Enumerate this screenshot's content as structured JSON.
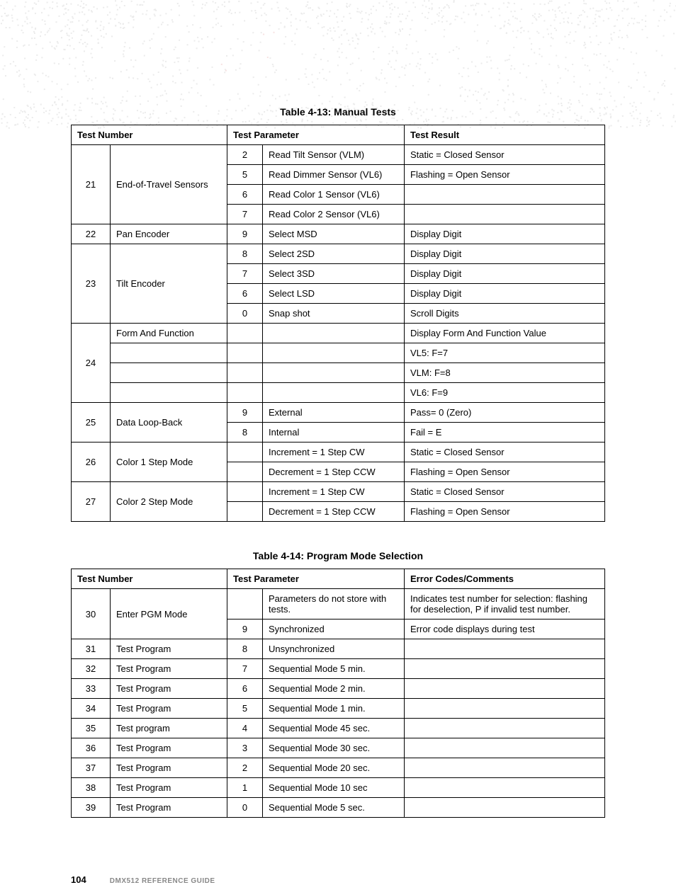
{
  "background": {
    "dot_color": "#bfbfbf",
    "red_highlight": "#e8a0a0"
  },
  "table413": {
    "caption": "Table 4-13: Manual Tests",
    "headers": {
      "col1": "Test Number",
      "col2": "Test Parameter",
      "col3": "Test Result"
    },
    "groups": [
      {
        "num": "21",
        "name": "End-of-Travel Sensors",
        "rows": [
          {
            "p": "2",
            "pt": "Read Tilt Sensor (VLM)",
            "r": "Static = Closed Sensor"
          },
          {
            "p": "5",
            "pt": "Read Dimmer Sensor (VL6)",
            "r": "Flashing = Open Sensor"
          },
          {
            "p": "6",
            "pt": "Read Color 1 Sensor (VL6)",
            "r": ""
          },
          {
            "p": "7",
            "pt": "Read Color 2 Sensor (VL6)",
            "r": ""
          }
        ]
      },
      {
        "num": "22",
        "name": "Pan Encoder",
        "rows": [
          {
            "p": "9",
            "pt": "Select MSD",
            "r": "Display Digit"
          }
        ]
      },
      {
        "num": "23",
        "name": "Tilt Encoder",
        "rows": [
          {
            "p": "8",
            "pt": "Select 2SD",
            "r": "Display Digit"
          },
          {
            "p": "7",
            "pt": "Select 3SD",
            "r": "Display Digit"
          },
          {
            "p": "6",
            "pt": "Select LSD",
            "r": "Display Digit"
          },
          {
            "p": "0",
            "pt": "Snap shot",
            "r": "Scroll Digits"
          }
        ]
      },
      {
        "num": "24",
        "name": "Form And Function",
        "name_first_row_only": true,
        "rows": [
          {
            "p": "",
            "pt": "",
            "r": "Display Form And Function Value"
          },
          {
            "p": "",
            "pt": "",
            "r": "VL5: F=7"
          },
          {
            "p": "",
            "pt": "",
            "r": "VLM: F=8"
          },
          {
            "p": "",
            "pt": "",
            "r": "VL6: F=9"
          }
        ]
      },
      {
        "num": "25",
        "name": "Data Loop-Back",
        "rows": [
          {
            "p": "9",
            "pt": "External",
            "r": "Pass= 0 (Zero)"
          },
          {
            "p": "8",
            "pt": "Internal",
            "r": "Fail = E"
          }
        ]
      },
      {
        "num": "26",
        "name": "Color 1 Step Mode",
        "rows": [
          {
            "p": "",
            "pt": "Increment = 1 Step CW",
            "r": "Static = Closed Sensor"
          },
          {
            "p": "",
            "pt": "Decrement = 1 Step CCW",
            "r": "Flashing = Open Sensor"
          }
        ]
      },
      {
        "num": "27",
        "name": "Color 2 Step Mode",
        "rows": [
          {
            "p": "",
            "pt": "Increment = 1 Step CW",
            "r": "Static = Closed Sensor"
          },
          {
            "p": "",
            "pt": "Decrement = 1 Step CCW",
            "r": "Flashing = Open Sensor"
          }
        ]
      }
    ]
  },
  "table414": {
    "caption": "Table 4-14: Program Mode Selection",
    "headers": {
      "col1": "Test Number",
      "col2": "Test Parameter",
      "col3": "Error Codes/Comments"
    },
    "groups": [
      {
        "num": "30",
        "name": "Enter PGM Mode",
        "rows": [
          {
            "p": "",
            "pt": "Parameters do not store with tests.",
            "r": "Indicates test number for selection: flashing for deselection, P if invalid test number."
          },
          {
            "p": "9",
            "pt": "Synchronized",
            "r": "Error code displays during test"
          }
        ]
      },
      {
        "num": "31",
        "name": "Test Program",
        "rows": [
          {
            "p": "8",
            "pt": "Unsynchronized",
            "r": ""
          }
        ]
      },
      {
        "num": "32",
        "name": "Test Program",
        "rows": [
          {
            "p": "7",
            "pt": "Sequential Mode 5 min.",
            "r": ""
          }
        ]
      },
      {
        "num": "33",
        "name": "Test Program",
        "rows": [
          {
            "p": "6",
            "pt": "Sequential Mode 2 min.",
            "r": ""
          }
        ]
      },
      {
        "num": "34",
        "name": "Test Program",
        "rows": [
          {
            "p": "5",
            "pt": "Sequential Mode 1 min.",
            "r": ""
          }
        ]
      },
      {
        "num": "35",
        "name": "Test program",
        "rows": [
          {
            "p": "4",
            "pt": "Sequential Mode 45 sec.",
            "r": ""
          }
        ]
      },
      {
        "num": "36",
        "name": "Test Program",
        "rows": [
          {
            "p": "3",
            "pt": "Sequential Mode 30 sec.",
            "r": ""
          }
        ]
      },
      {
        "num": "37",
        "name": "Test Program",
        "rows": [
          {
            "p": "2",
            "pt": "Sequential Mode 20 sec.",
            "r": ""
          }
        ]
      },
      {
        "num": "38",
        "name": "Test Program",
        "rows": [
          {
            "p": "1",
            "pt": "Sequential Mode 10 sec",
            "r": ""
          }
        ]
      },
      {
        "num": "39",
        "name": "Test Program",
        "rows": [
          {
            "p": "0",
            "pt": "Sequential Mode 5 sec.",
            "r": ""
          }
        ]
      }
    ]
  },
  "footer": {
    "page": "104",
    "book": "DMX512 REFERENCE GUIDE"
  }
}
